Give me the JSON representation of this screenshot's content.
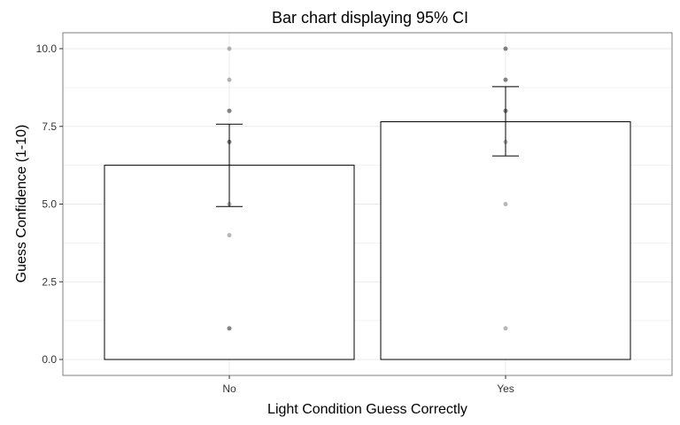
{
  "chart_data": {
    "type": "bar",
    "title": "Bar chart displaying 95% CI",
    "xlabel": "Light Condition Guess Correctly",
    "ylabel": "Guess Confidence (1-10)",
    "categories": [
      "No",
      "Yes"
    ],
    "values": [
      6.25,
      7.65
    ],
    "ci_lower": [
      4.92,
      6.55
    ],
    "ci_upper": [
      7.57,
      8.78
    ],
    "ylim": [
      -0.5,
      10.5
    ],
    "yticks": [
      "0.0",
      "2.5",
      "5.0",
      "7.5",
      "10.0"
    ],
    "ytick_values": [
      0,
      2.5,
      5,
      7.5,
      10
    ],
    "points": [
      {
        "category": "No",
        "y": [
          10,
          9,
          8,
          8,
          7,
          7,
          5,
          4,
          1,
          1
        ]
      },
      {
        "category": "Yes",
        "y": [
          10,
          10,
          9,
          9,
          8,
          8,
          7,
          5,
          1
        ]
      }
    ],
    "grid": true,
    "colors": {
      "bar_fill": "#ffffff",
      "bar_stroke": "#000000",
      "point": "#000000",
      "panel_border": "#7f7f7f",
      "grid": "#ebebeb"
    }
  }
}
